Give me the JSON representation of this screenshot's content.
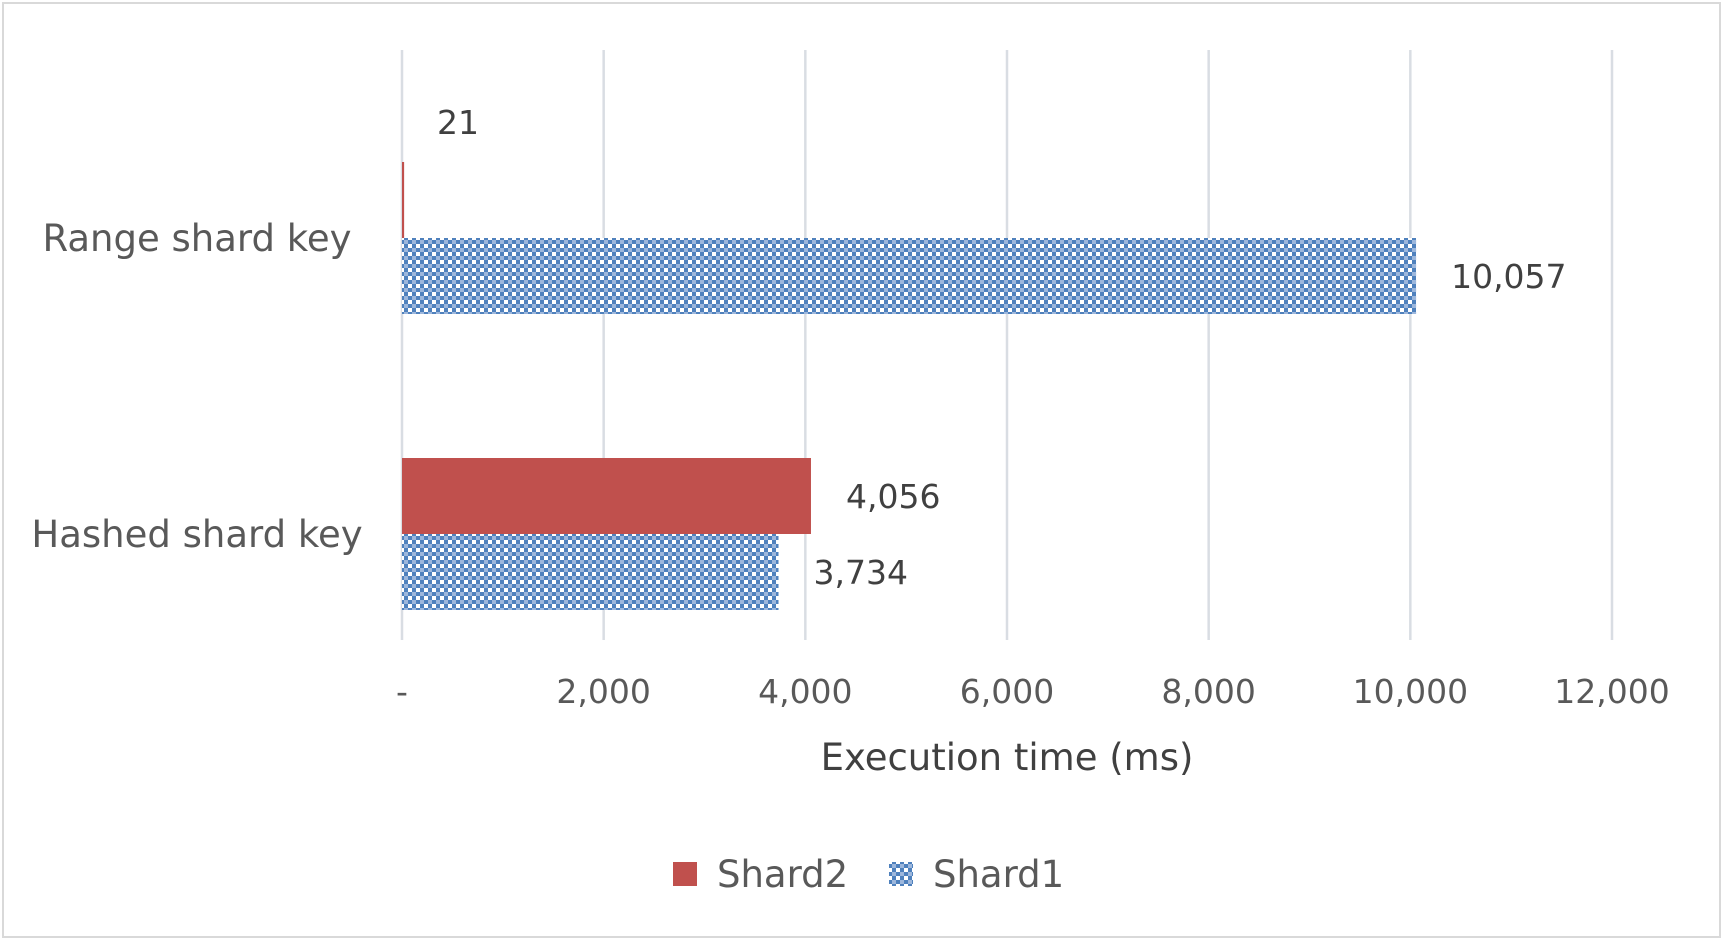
{
  "chart_data": {
    "type": "bar",
    "orientation": "horizontal",
    "categories": [
      "Range shard key",
      "Hashed shard key"
    ],
    "series": [
      {
        "name": "Shard2",
        "values": [
          21,
          4056
        ],
        "color": "#c0504d",
        "pattern": "solid"
      },
      {
        "name": "Shard1",
        "values": [
          10057,
          3734
        ],
        "color": "#4f81bd",
        "pattern": "checkered"
      }
    ],
    "data_labels": [
      [
        "21",
        "4,056"
      ],
      [
        "10,057",
        "3,734"
      ]
    ],
    "xlabel": "Execution time (ms)",
    "xlim": [
      0,
      12000
    ],
    "ticks": [
      0,
      2000,
      4000,
      6000,
      8000,
      10000,
      12000
    ],
    "tick_labels": [
      "-",
      "2,000",
      "4,000",
      "6,000",
      "8,000",
      "10,000",
      "12,000"
    ],
    "legend": {
      "position": "bottom",
      "order": [
        "Shard2",
        "Shard1"
      ]
    },
    "grid": {
      "vertical": true,
      "horizontal": false
    }
  }
}
